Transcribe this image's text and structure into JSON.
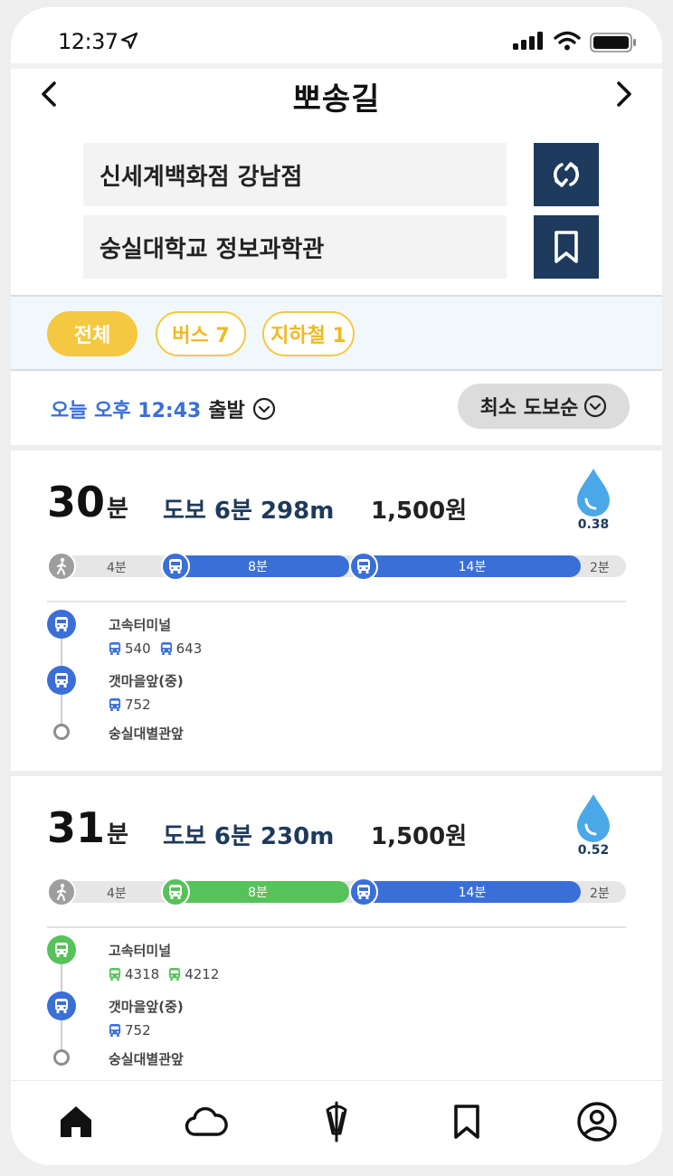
{
  "status": {
    "time": "12:37"
  },
  "header": {
    "title": "뽀송길"
  },
  "search": {
    "origin": "신세계백화점 강남점",
    "destination": "숭실대학교 정보과학관"
  },
  "filters": [
    {
      "label": "전체",
      "selected": true
    },
    {
      "label": "버스 7",
      "selected": false
    },
    {
      "label": "지하철 1",
      "selected": false
    }
  ],
  "depart": {
    "time": "오늘 오후 12:43",
    "label": "출발"
  },
  "sort": {
    "label": "최소 도보순"
  },
  "colors": {
    "accent_yellow": "#f5c842",
    "navy": "#1e3a5c",
    "bus_blue": "#3a6fd8",
    "bus_green": "#56c25a",
    "walk_gray": "#9e9e9e",
    "drop_blue": "#4aa8e8"
  },
  "routes": [
    {
      "duration": "30",
      "duration_unit": "분",
      "walk": "도보 6분 298m",
      "fare": "1,500원",
      "precip": "0.38",
      "segments": [
        {
          "type": "walk",
          "label": "4분"
        },
        {
          "type": "bus",
          "color": "#3a6fd8",
          "label": "8분"
        },
        {
          "type": "bus",
          "color": "#3a6fd8",
          "label": "14분"
        },
        {
          "type": "walk",
          "label": "2분"
        }
      ],
      "stops": [
        {
          "name": "고속터미널",
          "color": "#3a6fd8",
          "buses": [
            "540",
            "643"
          ]
        },
        {
          "name": "갯마을앞(중)",
          "color": "#3a6fd8",
          "buses": [
            "752"
          ]
        },
        {
          "name": "숭실대별관앞",
          "end": true
        }
      ]
    },
    {
      "duration": "31",
      "duration_unit": "분",
      "walk": "도보 6분 230m",
      "fare": "1,500원",
      "precip": "0.52",
      "segments": [
        {
          "type": "walk",
          "label": "4분"
        },
        {
          "type": "bus",
          "color": "#56c25a",
          "label": "8분"
        },
        {
          "type": "bus",
          "color": "#3a6fd8",
          "label": "14분"
        },
        {
          "type": "walk",
          "label": "2분"
        }
      ],
      "stops": [
        {
          "name": "고속터미널",
          "color": "#56c25a",
          "buses": [
            "4318",
            "4212"
          ]
        },
        {
          "name": "갯마을앞(중)",
          "color": "#3a6fd8",
          "buses": [
            "752"
          ]
        },
        {
          "name": "숭실대별관앞",
          "end": true
        }
      ]
    }
  ],
  "tabbar": {
    "items": [
      "home-icon",
      "cloud-icon",
      "umbrella-icon",
      "bookmark-icon",
      "profile-icon"
    ]
  }
}
